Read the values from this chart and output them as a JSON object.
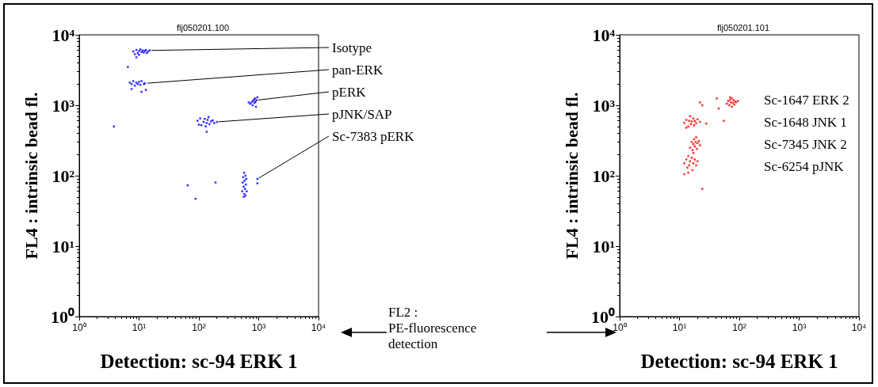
{
  "chart_data": [
    {
      "type": "scatter",
      "title": "flj050201.100",
      "xlabel": "Detection: sc-94 ERK 1",
      "ylabel": "FL4 : intrinsic bead fl.",
      "log": "xy",
      "marker": "square",
      "grid": false,
      "xlim": [
        1,
        10000
      ],
      "ylim": [
        1,
        10000
      ],
      "xticks": [
        {
          "value": 1,
          "label": "10⁰"
        },
        {
          "value": 10,
          "label": "10¹"
        },
        {
          "value": 100,
          "label": "10²"
        },
        {
          "value": 1000,
          "label": "10³"
        },
        {
          "value": 10000,
          "label": "10⁴"
        }
      ],
      "yticks": [
        {
          "value": 1,
          "label": "10⁰"
        },
        {
          "value": 10,
          "label": "10¹"
        },
        {
          "value": 100,
          "label": "10²"
        },
        {
          "value": 1000,
          "label": "10³"
        },
        {
          "value": 10000,
          "label": "10⁴"
        }
      ],
      "series": [
        {
          "color": "#0000ff",
          "x": [
            8,
            9,
            9.5,
            10,
            10.5,
            11,
            11.5,
            12,
            12.5,
            13,
            13.5,
            14,
            8.5,
            10,
            15,
            9,
            7,
            7.5,
            8,
            8.5,
            9,
            9.5,
            10,
            10.5,
            11,
            12,
            12.5,
            13,
            11,
            7.5,
            6.5,
            720,
            760,
            790,
            800,
            830,
            850,
            870,
            880,
            900,
            920,
            950,
            680,
            95,
            105,
            110,
            120,
            125,
            130,
            135,
            140,
            145,
            150,
            160,
            170,
            180,
            200,
            135,
            100,
            530,
            540,
            550,
            560,
            570,
            575,
            580,
            590,
            600,
            610,
            620,
            630,
            560,
            600,
            3.8,
            65,
            88,
            190,
            950,
            950
          ],
          "values": [
            5800,
            6100,
            5500,
            5900,
            6200,
            5700,
            6000,
            5600,
            5900,
            6100,
            5500,
            5800,
            5300,
            5200,
            6000,
            4800,
            2100,
            2000,
            2200,
            1900,
            2100,
            2000,
            2150,
            1950,
            2200,
            2000,
            2050,
            1650,
            1550,
            1700,
            3500,
            1050,
            1100,
            1000,
            1150,
            1200,
            1080,
            1250,
            1120,
            950,
            1180,
            1300,
            1100,
            600,
            650,
            520,
            580,
            640,
            500,
            560,
            620,
            680,
            540,
            590,
            610,
            560,
            580,
            420,
            530,
            60,
            80,
            95,
            70,
            110,
            55,
            85,
            65,
            100,
            75,
            90,
            60,
            50,
            52,
            500,
            73,
            47,
            80,
            90,
            78
          ]
        }
      ],
      "annotations": [
        {
          "text": "Isotype",
          "x": 15,
          "y": 6000
        },
        {
          "text": "pan-ERK",
          "x": 13,
          "y": 2050
        },
        {
          "text": "pERK",
          "x": 920,
          "y": 1180
        },
        {
          "text": "pJNK/SAP",
          "x": 200,
          "y": 580
        },
        {
          "text": "Sc-7383 pERK",
          "x": 950,
          "y": 90
        }
      ]
    },
    {
      "type": "scatter",
      "title": "flj050201.101",
      "xlabel": "Detection: sc-94 ERK 1",
      "ylabel": "FL4 : intrinsic bead fl.",
      "log": "xy",
      "marker": "square",
      "grid": false,
      "xlim": [
        1,
        10000
      ],
      "ylim": [
        1,
        10000
      ],
      "xticks": [
        {
          "value": 1,
          "label": "10⁰"
        },
        {
          "value": 10,
          "label": "10¹"
        },
        {
          "value": 100,
          "label": "10²"
        },
        {
          "value": 1000,
          "label": "10³"
        },
        {
          "value": 10000,
          "label": "10⁴"
        }
      ],
      "yticks": [
        {
          "value": 1,
          "label": "10⁰"
        },
        {
          "value": 10,
          "label": "10¹"
        },
        {
          "value": 100,
          "label": "10²"
        },
        {
          "value": 1000,
          "label": "10³"
        },
        {
          "value": 10000,
          "label": "10⁴"
        }
      ],
      "series": [
        {
          "color": "#ff0000",
          "x": [
            62,
            65,
            68,
            70,
            72,
            75,
            75,
            78,
            80,
            82,
            85,
            88,
            70,
            95,
            12,
            13,
            14,
            14.5,
            15,
            15.5,
            16,
            17,
            17.5,
            18,
            19,
            20,
            13,
            22,
            15,
            16,
            16.5,
            17,
            17.5,
            18,
            18.5,
            19,
            19.5,
            20,
            21,
            22,
            17,
            12,
            13,
            13.5,
            14,
            14.5,
            15,
            16,
            16.5,
            17,
            18,
            19,
            20,
            14,
            12,
            24,
            22,
            24,
            42,
            45,
            55,
            28
          ],
          "values": [
            1050,
            1150,
            1000,
            1200,
            1100,
            1250,
            950,
            1080,
            1180,
            1020,
            1130,
            1100,
            1300,
            1150,
            560,
            620,
            500,
            600,
            700,
            540,
            590,
            650,
            520,
            600,
            560,
            630,
            480,
            580,
            250,
            300,
            230,
            280,
            330,
            260,
            300,
            350,
            240,
            290,
            310,
            270,
            210,
            150,
            170,
            130,
            190,
            140,
            160,
            180,
            120,
            150,
            170,
            140,
            160,
            110,
            105,
            65,
            1100,
            1000,
            1250,
            900,
            600,
            550
          ]
        }
      ],
      "annotations": [
        "Sc-1647 ERK 2",
        "Sc-1648 JNK 1",
        "Sc-7345 JNK 2",
        "Sc-6254 pJNK",
        "FL2 : PE-fluorescence detection"
      ]
    }
  ]
}
